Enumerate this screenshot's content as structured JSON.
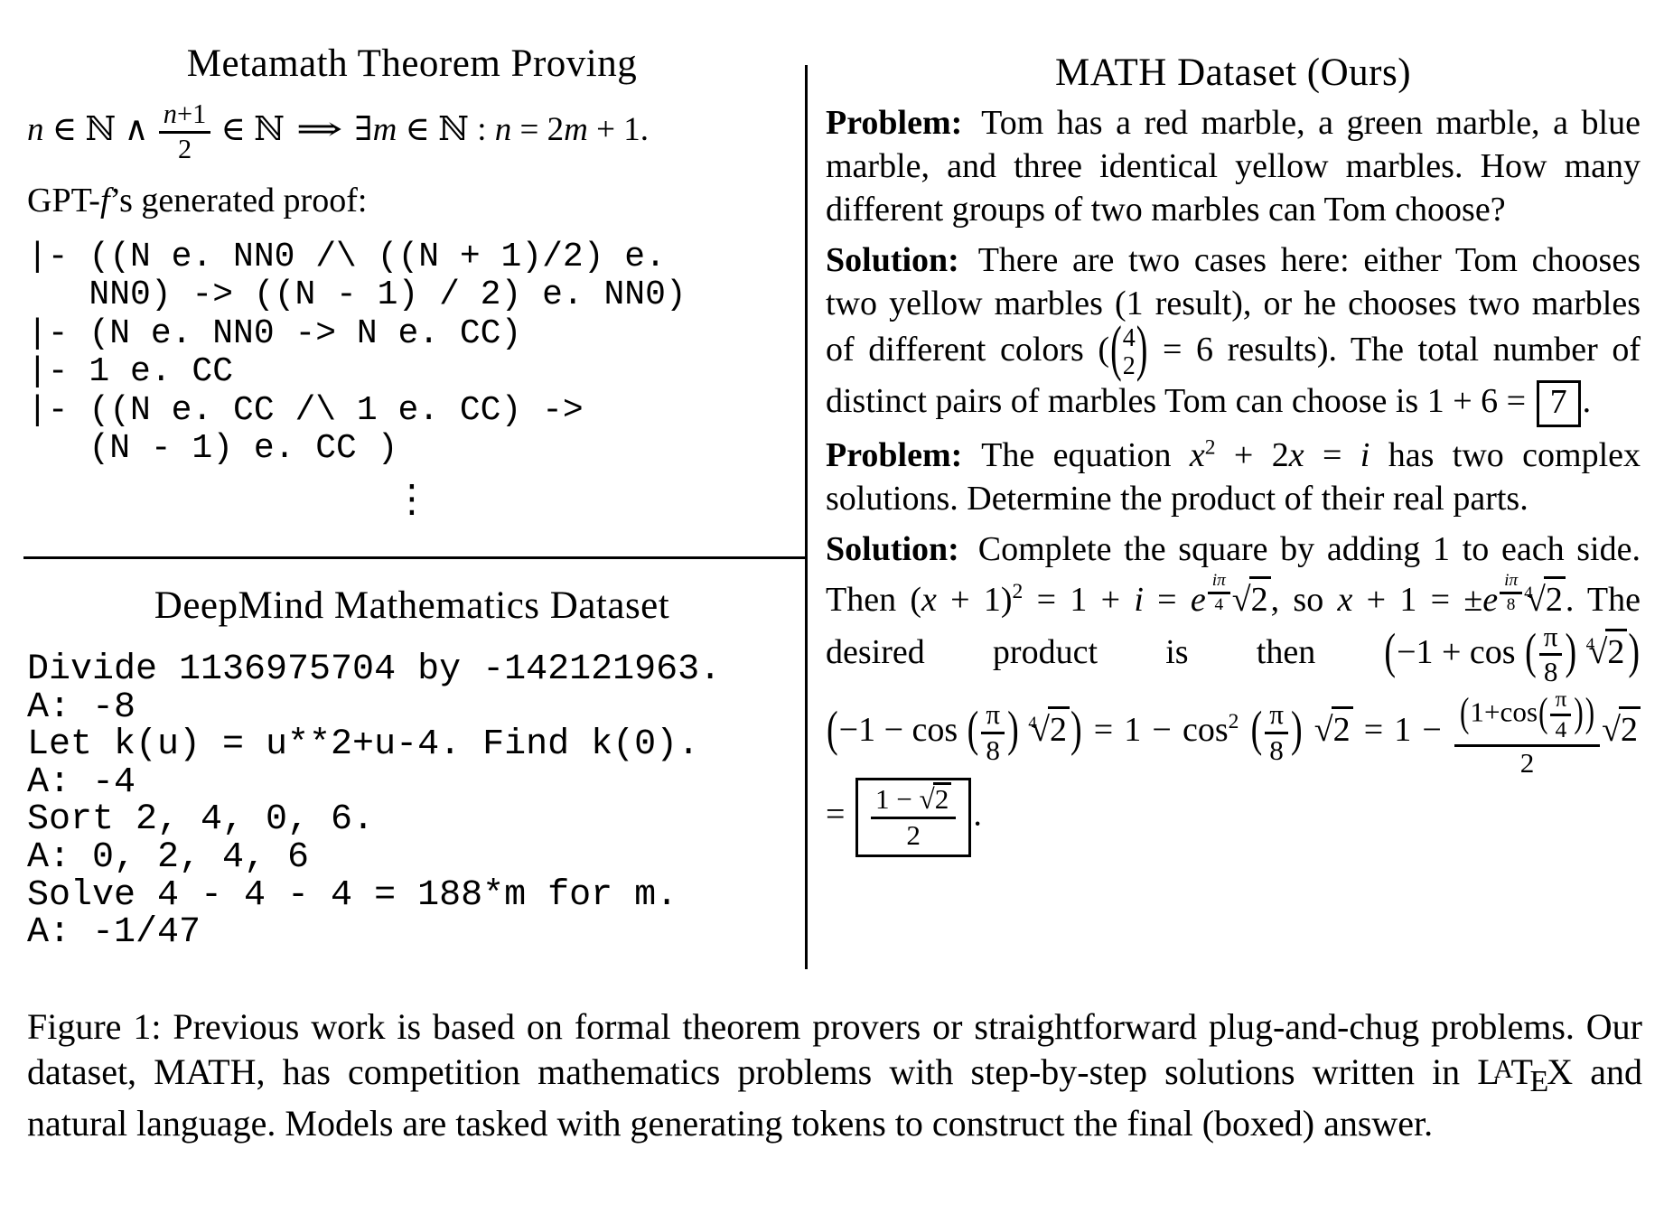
{
  "colors": {
    "text": "#000000",
    "background": "#ffffff"
  },
  "panels": {
    "metamath": {
      "title": "Metamath Theorem Proving",
      "statement": [
        {
          "s": "i",
          "v": "n"
        },
        " ∈ ℕ ∧ ",
        {
          "s": "frac",
          "n": [
            {
              "s": "i",
              "v": "n"
            },
            "+1"
          ],
          "d": [
            "2"
          ]
        },
        " ∈ ℕ ",
        {
          "s": "imp",
          "v": "⇒"
        },
        " ∃",
        {
          "s": "i",
          "v": "m"
        },
        " ∈ ℕ : ",
        {
          "s": "i",
          "v": "n"
        },
        " = 2",
        {
          "s": "i",
          "v": "m"
        },
        " + 1."
      ],
      "proof_label": [
        "GPT-",
        {
          "s": "i",
          "v": "f"
        },
        "’s generated proof:"
      ],
      "code": [
        "|- ((N e. NN0 /\\ ((N + 1)/2) e.",
        "   NN0) -> ((N - 1) / 2) e. NN0)",
        "|- (N e. NN0 -> N e. CC)",
        "|- 1 e. CC",
        "|- ((N e. CC /\\ 1 e. CC) ->",
        "   (N - 1) e. CC )"
      ],
      "vdots": "⋮"
    },
    "deepmind": {
      "title": "DeepMind Mathematics Dataset",
      "code": [
        "Divide 1136975704 by -142121963.",
        "A: -8",
        "Let k(u) = u**2+u-4. Find k(0).",
        "A: -4",
        "Sort 2, 4, 0, 6.",
        "A: 0, 2, 4, 6",
        "Solve 4 - 4 - 4 = 188*m for m.",
        "A: -1/47"
      ]
    },
    "math_dataset": {
      "title": "MATH Dataset (Ours)",
      "blocks": [
        [
          {
            "s": "b",
            "v": "Problem:"
          },
          "Tom has a red marble, a green marble, a blue marble, and three identical yellow marbles. How many different groups of two marbles can Tom choose?"
        ],
        [
          {
            "s": "b",
            "v": "Solution:"
          },
          "There are two cases here: either Tom chooses two yellow marbles (1 result), or he chooses two marbles of different colors (",
          {
            "s": "binom",
            "n": "4",
            "d": "2"
          },
          " = 6 results). The total number of distinct pairs of marbles Tom can choose is 1 + 6 = ",
          {
            "s": "box",
            "v": [
              "7"
            ]
          },
          "."
        ],
        [
          {
            "s": "b",
            "v": "Problem:"
          },
          "The equation ",
          {
            "s": "i",
            "v": "x"
          },
          {
            "s": "sup",
            "v": "2"
          },
          " + 2",
          {
            "s": "i",
            "v": "x"
          },
          " = ",
          {
            "s": "i",
            "v": "i"
          },
          " has two complex solutions. Determine the product of their real parts."
        ],
        [
          {
            "s": "b",
            "v": "Solution:"
          },
          "Complete the square by adding 1 to each side. Then (",
          {
            "s": "i",
            "v": "x"
          },
          " + 1)",
          {
            "s": "sup",
            "v": "2"
          },
          " = 1 + ",
          {
            "s": "i",
            "v": "i"
          },
          " = ",
          {
            "s": "i",
            "v": "e"
          },
          {
            "s": "sup",
            "v": [
              {
                "s": "frac",
                "n": [
                  {
                    "s": "i",
                    "v": "iπ"
                  }
                ],
                "d": [
                  "4"
                ]
              }
            ]
          },
          {
            "s": "sqrt",
            "v": [
              "2"
            ]
          },
          ", so ",
          {
            "s": "i",
            "v": "x"
          },
          " + 1 = ±",
          {
            "s": "i",
            "v": "e"
          },
          {
            "s": "sup",
            "v": [
              {
                "s": "frac",
                "n": [
                  {
                    "s": "i",
                    "v": "iπ"
                  }
                ],
                "d": [
                  "8"
                ]
              }
            ]
          },
          {
            "s": "sqrt",
            "idx": "4",
            "v": [
              "2"
            ]
          },
          ". The desired product is then ",
          {
            "s": "paren",
            "v": [
              "−1 + cos ",
              {
                "s": "paren",
                "v": [
                  {
                    "s": "frac",
                    "n": [
                      "π"
                    ],
                    "d": [
                      "8"
                    ]
                  }
                ]
              },
              " ",
              {
                "s": "sqrt",
                "idx": "4",
                "v": [
                  "2"
                ]
              }
            ]
          },
          " ",
          {
            "s": "paren",
            "v": [
              "−1 − cos ",
              {
                "s": "paren",
                "v": [
                  {
                    "s": "frac",
                    "n": [
                      "π"
                    ],
                    "d": [
                      "8"
                    ]
                  }
                ]
              },
              " ",
              {
                "s": "sqrt",
                "idx": "4",
                "v": [
                  "2"
                ]
              }
            ]
          },
          " = 1 − cos",
          {
            "s": "sup",
            "v": "2"
          },
          " ",
          {
            "s": "paren",
            "v": [
              {
                "s": "frac",
                "n": [
                  "π"
                ],
                "d": [
                  "8"
                ]
              }
            ]
          },
          " ",
          {
            "s": "sqrt",
            "v": [
              "2"
            ]
          },
          " = 1 − ",
          {
            "s": "frac",
            "n": [
              {
                "s": "paren",
                "v": [
                  "1+cos",
                  {
                    "s": "paren",
                    "v": [
                      {
                        "s": "frac",
                        "n": [
                          "π"
                        ],
                        "d": [
                          "4"
                        ]
                      }
                    ]
                  }
                ]
              }
            ],
            "d": [
              "2"
            ]
          },
          {
            "s": "sqrt",
            "v": [
              "2"
            ]
          },
          " = ",
          {
            "s": "box",
            "v": [
              {
                "s": "frac",
                "n": [
                  "1 − ",
                  {
                    "s": "sqrt",
                    "v": [
                      "2"
                    ]
                  }
                ],
                "d": [
                  "2"
                ]
              }
            ]
          },
          "."
        ]
      ]
    }
  },
  "caption": [
    "Figure 1: Previous work is based on formal theorem provers or straightforward plug-and-chug problems. Our dataset, MATH, has competition mathematics problems with step-by-step solutions written in ",
    {
      "s": "latex",
      "v": "LATEX"
    },
    " and natural language. Models are tasked with generating tokens to construct the final (boxed) answer."
  ]
}
